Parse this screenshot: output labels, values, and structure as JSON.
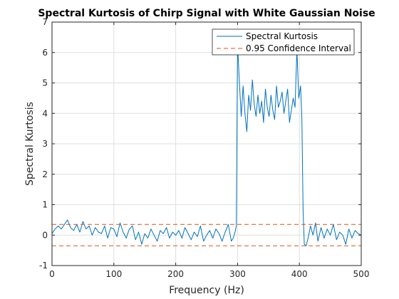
{
  "chart_data": {
    "type": "line",
    "title": "Spectral Kurtosis of Chirp Signal with White Gaussian Noise",
    "xlabel": "Frequency (Hz)",
    "ylabel": "Spectral Kurtosis",
    "xlim": [
      0,
      500
    ],
    "ylim": [
      -1,
      7
    ],
    "xticks": [
      0,
      100,
      200,
      300,
      400,
      500
    ],
    "yticks": [
      -1,
      0,
      1,
      2,
      3,
      4,
      5,
      6,
      7
    ],
    "grid": true,
    "legend_position": "top-right",
    "series": [
      {
        "name": "Spectral Kurtosis",
        "color": "#0072BD",
        "style": "solid",
        "x": [
          0,
          5,
          10,
          15,
          20,
          25,
          30,
          35,
          40,
          45,
          50,
          55,
          60,
          65,
          70,
          75,
          80,
          85,
          90,
          95,
          100,
          105,
          110,
          115,
          120,
          125,
          130,
          135,
          140,
          145,
          150,
          155,
          160,
          165,
          170,
          175,
          180,
          185,
          190,
          195,
          200,
          205,
          210,
          215,
          220,
          225,
          230,
          235,
          240,
          245,
          250,
          255,
          260,
          265,
          270,
          275,
          280,
          285,
          290,
          293,
          296,
          298,
          300,
          303,
          306,
          309,
          312,
          315,
          318,
          321,
          324,
          327,
          330,
          333,
          336,
          339,
          342,
          345,
          348,
          351,
          354,
          357,
          360,
          363,
          366,
          369,
          372,
          375,
          378,
          381,
          384,
          387,
          390,
          393,
          396,
          399,
          402,
          404,
          406,
          408,
          411,
          414,
          418,
          422,
          426,
          430,
          435,
          440,
          445,
          450,
          455,
          460,
          465,
          470,
          475,
          480,
          485,
          490,
          495,
          500
        ],
        "values": [
          0.05,
          0.2,
          0.3,
          0.2,
          0.35,
          0.5,
          0.25,
          0.15,
          0.35,
          0.1,
          0.45,
          0.2,
          0.3,
          0.0,
          0.25,
          0.1,
          0.05,
          0.3,
          -0.1,
          0.25,
          0.2,
          -0.05,
          0.4,
          0.1,
          -0.1,
          0.2,
          0.3,
          -0.15,
          0.1,
          -0.3,
          0.05,
          -0.1,
          0.2,
          0.0,
          -0.2,
          0.15,
          0.05,
          0.25,
          -0.1,
          0.1,
          0.0,
          0.15,
          -0.1,
          0.25,
          0.05,
          -0.15,
          0.1,
          -0.05,
          0.3,
          -0.2,
          0.0,
          0.15,
          -0.1,
          0.2,
          0.05,
          -0.2,
          0.1,
          0.35,
          -0.2,
          -0.1,
          0.1,
          0.3,
          6.3,
          5.0,
          3.9,
          4.9,
          4.0,
          3.4,
          4.6,
          4.1,
          5.1,
          4.3,
          3.9,
          4.6,
          4.0,
          4.4,
          3.7,
          4.8,
          4.2,
          3.9,
          4.6,
          4.1,
          3.8,
          4.9,
          4.2,
          4.4,
          4.7,
          4.0,
          4.4,
          4.8,
          3.7,
          4.1,
          4.5,
          4.2,
          6.1,
          4.5,
          4.9,
          3.8,
          0.8,
          -0.3,
          -0.35,
          -0.1,
          0.3,
          0.0,
          0.4,
          -0.2,
          0.25,
          -0.1,
          0.2,
          0.0,
          0.35,
          -0.15,
          0.1,
          0.0,
          -0.3,
          0.2,
          -0.1,
          0.15,
          0.05,
          0.0
        ]
      },
      {
        "name": "0.95 Confidence Interval",
        "color": "#D95319",
        "style": "dashed",
        "x": [
          0,
          500
        ],
        "values": [
          0.35,
          0.35
        ],
        "lower_values": [
          -0.35,
          -0.35
        ]
      }
    ]
  }
}
